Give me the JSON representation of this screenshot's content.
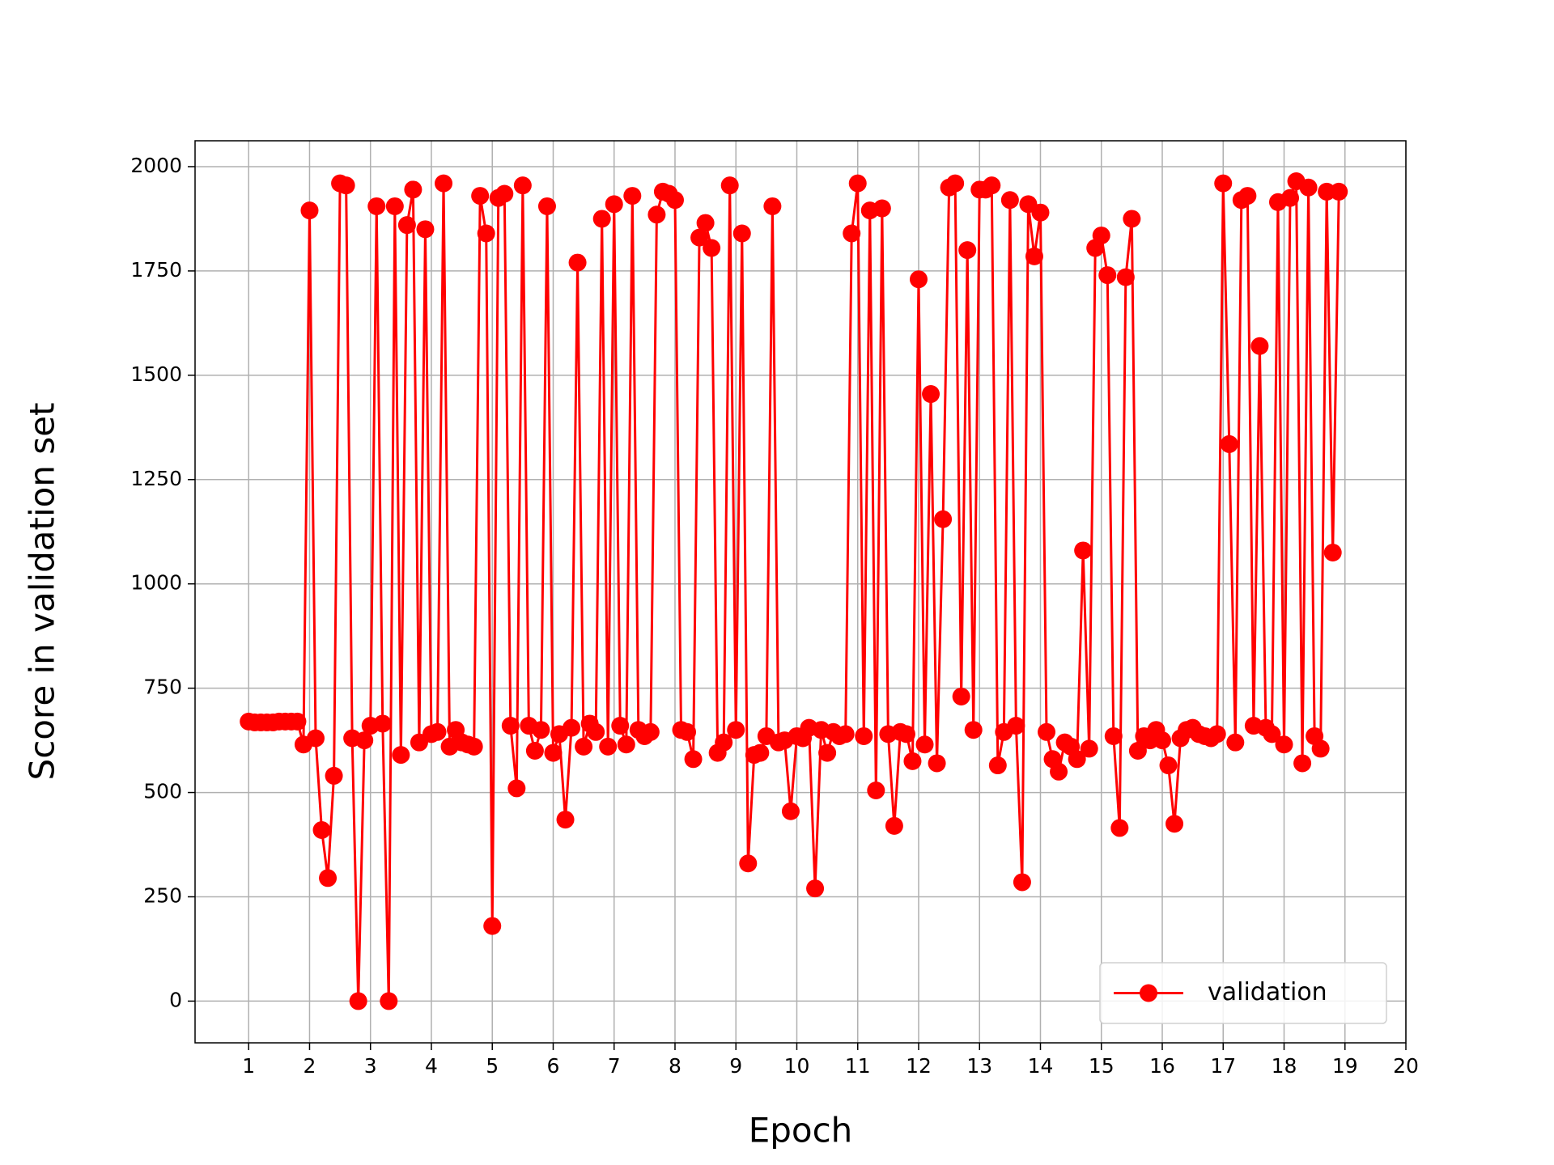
{
  "chart_data": {
    "type": "line",
    "xlabel": "Epoch",
    "ylabel": "Score in validation set",
    "x": [
      1.0,
      1.1,
      1.2,
      1.3,
      1.4,
      1.5,
      1.6,
      1.7,
      1.8,
      1.9,
      2.0,
      2.1,
      2.2,
      2.3,
      2.4,
      2.5,
      2.6,
      2.7,
      2.8,
      2.9,
      3.0,
      3.1,
      3.2,
      3.3,
      3.4,
      3.5,
      3.6,
      3.7,
      3.8,
      3.9,
      4.0,
      4.1,
      4.2,
      4.3,
      4.4,
      4.5,
      4.6,
      4.7,
      4.8,
      4.9,
      5.0,
      5.1,
      5.2,
      5.3,
      5.4,
      5.5,
      5.6,
      5.7,
      5.8,
      5.9,
      6.0,
      6.1,
      6.2,
      6.3,
      6.4,
      6.5,
      6.6,
      6.7,
      6.8,
      6.9,
      7.0,
      7.1,
      7.2,
      7.3,
      7.4,
      7.5,
      7.6,
      7.7,
      7.8,
      7.9,
      8.0,
      8.1,
      8.2,
      8.3,
      8.4,
      8.5,
      8.6,
      8.7,
      8.8,
      8.9,
      9.0,
      9.1,
      9.2,
      9.3,
      9.4,
      9.5,
      9.6,
      9.7,
      9.8,
      9.9,
      10.0,
      10.1,
      10.2,
      10.3,
      10.4,
      10.5,
      10.6,
      10.7,
      10.8,
      10.9,
      11.0,
      11.1,
      11.2,
      11.3,
      11.4,
      11.5,
      11.6,
      11.7,
      11.8,
      11.9,
      12.0,
      12.1,
      12.2,
      12.3,
      12.4,
      12.5,
      12.6,
      12.7,
      12.8,
      12.9,
      13.0,
      13.1,
      13.2,
      13.3,
      13.4,
      13.5,
      13.6,
      13.7,
      13.8,
      13.9,
      14.0,
      14.1,
      14.2,
      14.3,
      14.4,
      14.5,
      14.6,
      14.7,
      14.8,
      14.9,
      15.0,
      15.1,
      15.2,
      15.3,
      15.4,
      15.5,
      15.6,
      15.7,
      15.8,
      15.9,
      16.0,
      16.1,
      16.2,
      16.3,
      16.4,
      16.5,
      16.6,
      16.7,
      16.8,
      16.9,
      17.0,
      17.1,
      17.2,
      17.3,
      17.4,
      17.5,
      17.6,
      17.7,
      17.8,
      17.9,
      18.0,
      18.1,
      18.2,
      18.3,
      18.4,
      18.5,
      18.6,
      18.7,
      18.8,
      18.9
    ],
    "series": [
      {
        "name": "validation",
        "color": "#ff0000",
        "values": [
          670,
          668,
          668,
          668,
          668,
          670,
          670,
          670,
          670,
          615,
          1895,
          630,
          410,
          295,
          540,
          1960,
          1955,
          630,
          0,
          625,
          660,
          1905,
          665,
          0,
          1905,
          590,
          1860,
          1945,
          620,
          1850,
          640,
          645,
          1960,
          610,
          650,
          620,
          615,
          610,
          1930,
          1840,
          180,
          1925,
          1935,
          660,
          510,
          1955,
          660,
          600,
          650,
          1905,
          595,
          640,
          435,
          655,
          1770,
          610,
          665,
          645,
          1875,
          610,
          1910,
          660,
          615,
          1930,
          650,
          635,
          645,
          1885,
          1940,
          1935,
          1920,
          650,
          645,
          580,
          1830,
          1865,
          1805,
          595,
          620,
          1955,
          650,
          1840,
          330,
          590,
          595,
          635,
          1905,
          620,
          625,
          455,
          635,
          630,
          655,
          270,
          650,
          595,
          645,
          635,
          640,
          1840,
          1960,
          635,
          1895,
          505,
          1900,
          640,
          420,
          645,
          640,
          575,
          1730,
          615,
          1455,
          570,
          1155,
          1950,
          1960,
          730,
          1800,
          650,
          1945,
          1945,
          1955,
          565,
          645,
          1920,
          660,
          285,
          1910,
          1785,
          1890,
          645,
          580,
          550,
          620,
          610,
          580,
          1080,
          605,
          1805,
          1835,
          1740,
          635,
          415,
          1735,
          1875,
          600,
          635,
          625,
          650,
          625,
          565,
          425,
          630,
          650,
          655,
          640,
          635,
          630,
          640,
          1960,
          1335,
          620,
          1920,
          1930,
          660,
          1570,
          655,
          640,
          1915,
          615,
          1925,
          1965,
          570,
          1950,
          635,
          605,
          1940,
          1075,
          1940
        ]
      }
    ],
    "xlim": [
      0.12,
      20
    ],
    "ylim": [
      -100,
      2062
    ],
    "xticks": [
      1,
      2,
      3,
      4,
      5,
      6,
      7,
      8,
      9,
      10,
      11,
      12,
      13,
      14,
      15,
      16,
      17,
      18,
      19,
      20
    ],
    "yticks": [
      0,
      250,
      500,
      750,
      1000,
      1250,
      1500,
      1750,
      2000
    ],
    "grid": true,
    "legend": "lower right"
  }
}
